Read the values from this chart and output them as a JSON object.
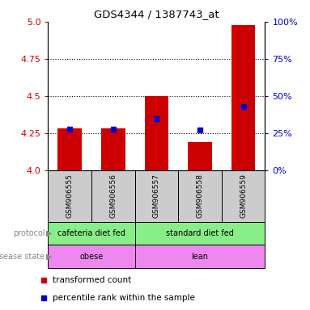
{
  "title": "GDS4344 / 1387743_at",
  "samples": [
    "GSM906555",
    "GSM906556",
    "GSM906557",
    "GSM906558",
    "GSM906559"
  ],
  "red_values": [
    4.285,
    4.285,
    4.5,
    4.19,
    4.98
  ],
  "blue_values": [
    28,
    28,
    35,
    27,
    43
  ],
  "ylim_left": [
    4.0,
    5.0
  ],
  "ylim_right": [
    0,
    100
  ],
  "yticks_left": [
    4.0,
    4.25,
    4.5,
    4.75,
    5.0
  ],
  "yticks_right": [
    0,
    25,
    50,
    75,
    100
  ],
  "left_color": "#cc0000",
  "right_color": "#0000cc",
  "bar_color": "#cc0000",
  "blue_color": "#0000cc",
  "protocol_labels": [
    "cafeteria diet fed",
    "standard diet fed"
  ],
  "protocol_color": "#88ee88",
  "disease_labels": [
    "obese",
    "lean"
  ],
  "disease_color": "#ee88ee",
  "sample_bg_color": "#cccccc",
  "legend_red": "transformed count",
  "legend_blue": "percentile rank within the sample",
  "bar_width": 0.55
}
